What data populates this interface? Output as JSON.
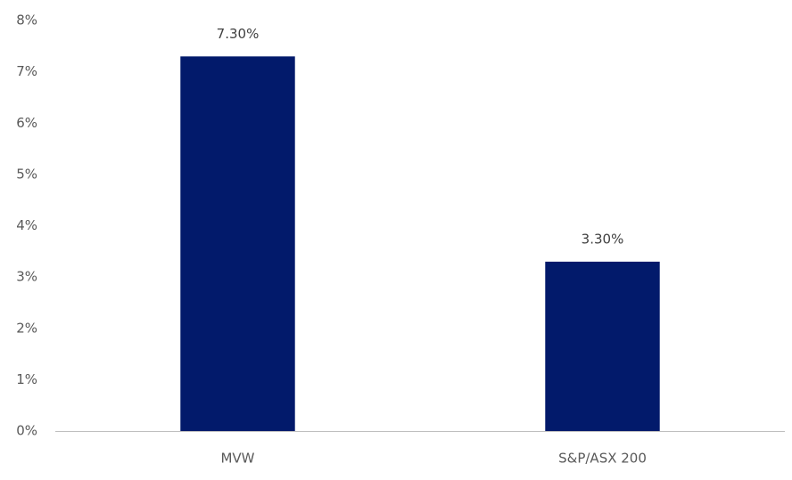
{
  "chart_data": {
    "type": "bar",
    "categories": [
      "MVW",
      "S&P/ASX 200"
    ],
    "values": [
      7.3,
      3.3
    ],
    "value_labels": [
      "7.30%",
      "3.30%"
    ],
    "color": "#021a6b",
    "ylim": [
      0,
      8
    ],
    "yticks": [
      {
        "value": 0,
        "label": "0%"
      },
      {
        "value": 1,
        "label": "1%"
      },
      {
        "value": 2,
        "label": "2%"
      },
      {
        "value": 3,
        "label": "3%"
      },
      {
        "value": 4,
        "label": "4%"
      },
      {
        "value": 5,
        "label": "5%"
      },
      {
        "value": 6,
        "label": "6%"
      },
      {
        "value": 7,
        "label": "7%"
      },
      {
        "value": 8,
        "label": "8%"
      }
    ],
    "grid": false
  }
}
